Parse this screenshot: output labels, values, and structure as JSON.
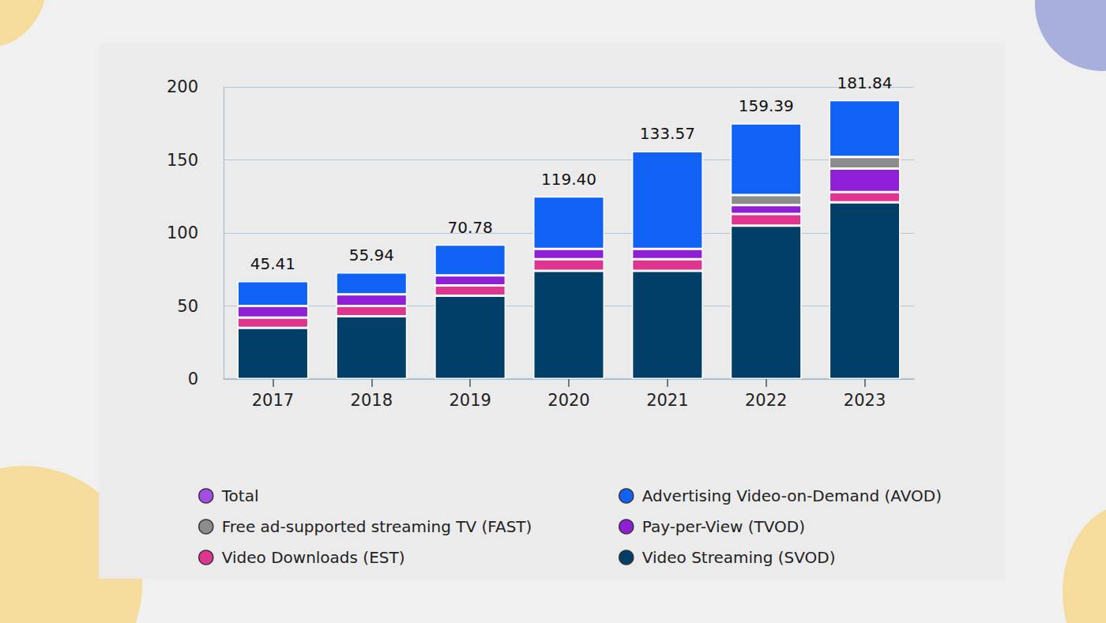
{
  "chart_data": {
    "type": "bar",
    "stacked": true,
    "grid": true,
    "legend": "bottom",
    "categories": [
      "2017",
      "2018",
      "2019",
      "2020",
      "2021",
      "2022",
      "2023"
    ],
    "ylim": [
      0,
      200
    ],
    "yticks": [
      0,
      50,
      100,
      150,
      200
    ],
    "series": [
      {
        "name": "Total",
        "type": "total",
        "color": "#a64ce6",
        "values": [
          45.41,
          55.94,
          70.78,
          119.4,
          133.57,
          159.39,
          181.84
        ],
        "value_labels": [
          "45.41",
          "55.94",
          "70.78",
          "119.40",
          "133.57",
          "159.39",
          "181.84"
        ]
      },
      {
        "name": "Advertising Video-on-Demand (AVOD)",
        "color": "#1062f5",
        "values": [
          17,
          15,
          21,
          36,
          67,
          49,
          39
        ]
      },
      {
        "name": "Free ad-supported streaming TV (FAST)",
        "color": "#8c8c8c",
        "values": [
          null,
          null,
          null,
          null,
          null,
          7,
          8
        ]
      },
      {
        "name": "Pay-per-View (TVOD)",
        "color": "#8e1fd6",
        "values": [
          8,
          8,
          7,
          7,
          7,
          6,
          16
        ]
      },
      {
        "name": "Video Downloads (EST)",
        "color": "#df3590",
        "values": [
          7,
          7,
          7,
          8,
          8,
          8,
          7
        ]
      },
      {
        "name": "Video Streaming (SVOD)",
        "color": "#023f68",
        "values": [
          35,
          43,
          57,
          74,
          74,
          105,
          121
        ]
      }
    ]
  }
}
